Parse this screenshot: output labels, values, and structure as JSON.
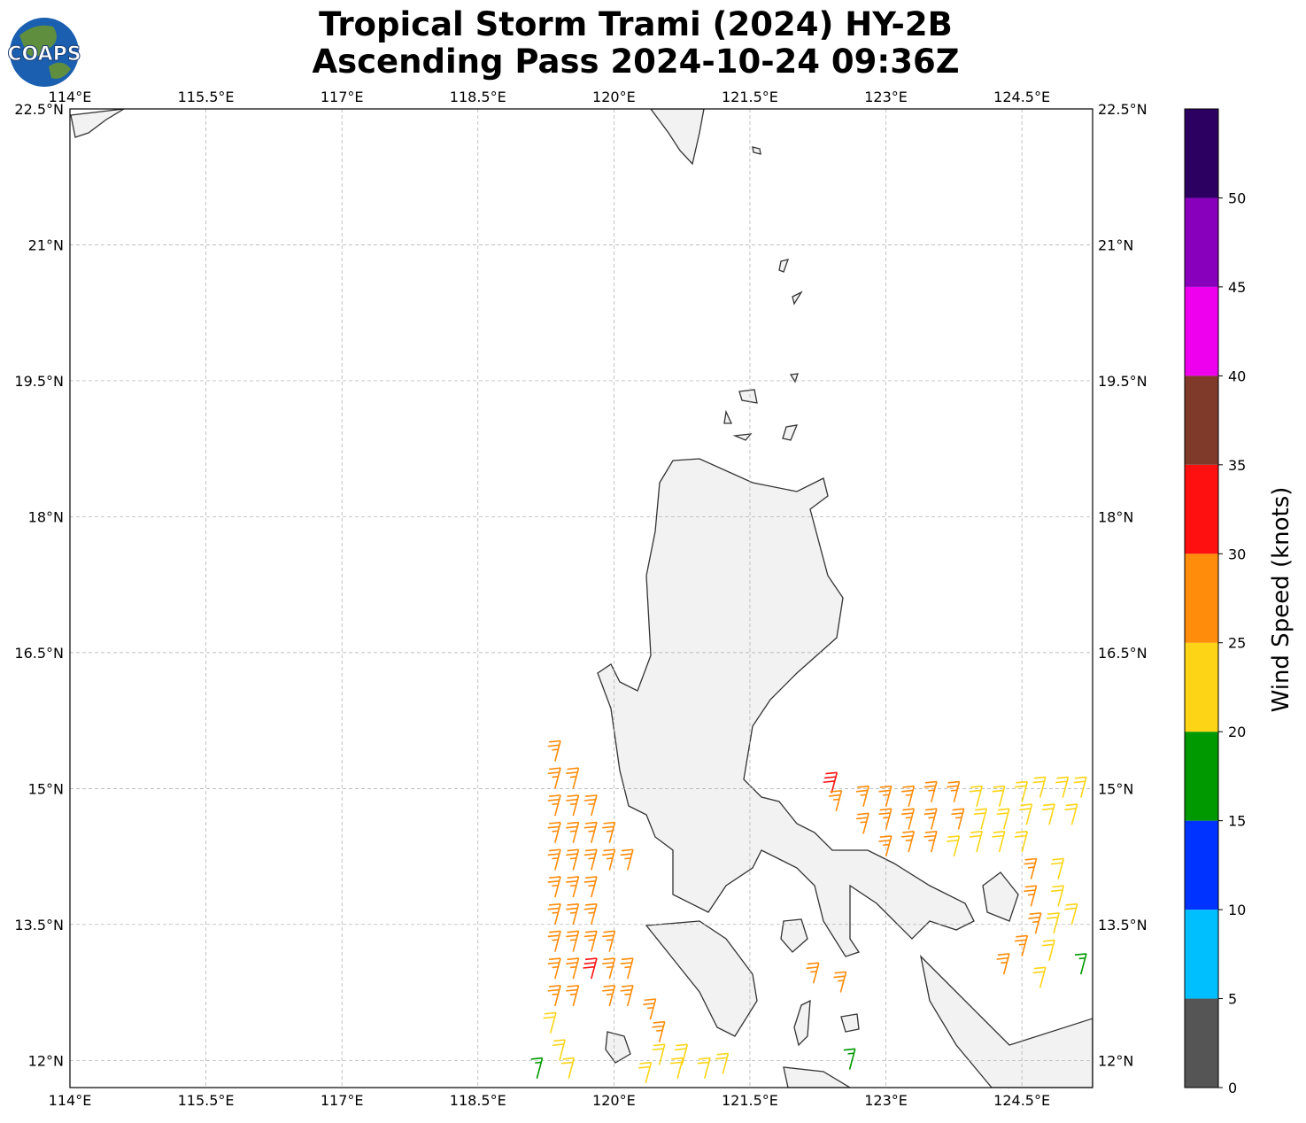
{
  "logo": "COAPS",
  "chart_data": {
    "type": "wind-barb-map",
    "title": "Tropical Storm Trami (2024) HY-2B",
    "subtitle": "Ascending Pass 2024-10-24 09:36Z",
    "xlim": [
      114,
      125.28
    ],
    "ylim": [
      11.7,
      22.5
    ],
    "xticks": [
      {
        "value": 114,
        "label": "114°E"
      },
      {
        "value": 115.5,
        "label": "115.5°E"
      },
      {
        "value": 117,
        "label": "117°E"
      },
      {
        "value": 118.5,
        "label": "118.5°E"
      },
      {
        "value": 120,
        "label": "120°E"
      },
      {
        "value": 121.5,
        "label": "121.5°E"
      },
      {
        "value": 123,
        "label": "123°E"
      },
      {
        "value": 124.5,
        "label": "124.5°E"
      }
    ],
    "yticks": [
      {
        "value": 12,
        "label": "12°N"
      },
      {
        "value": 13.5,
        "label": "13.5°N"
      },
      {
        "value": 15,
        "label": "15°N"
      },
      {
        "value": 16.5,
        "label": "16.5°N"
      },
      {
        "value": 18,
        "label": "18°N"
      },
      {
        "value": 19.5,
        "label": "19.5°N"
      },
      {
        "value": 21,
        "label": "21°N"
      },
      {
        "value": 22.5,
        "label": "22.5°N"
      }
    ],
    "grid": true,
    "colorbar": {
      "label": "Wind Speed (knots)",
      "lim": [
        0,
        55
      ],
      "bounds": [
        0,
        5,
        10,
        15,
        20,
        25,
        30,
        35,
        40,
        45,
        50,
        55
      ],
      "colors": [
        "#555555",
        "#00bfff",
        "#0033ff",
        "#009900",
        "#fdd516",
        "#ff8c0a",
        "#ff1010",
        "#7f3a2a",
        "#ee00ee",
        "#8800bb",
        "#2c0060"
      ],
      "ticks": [
        0,
        5,
        10,
        15,
        20,
        25,
        30,
        35,
        40,
        45,
        50
      ]
    },
    "barbs": [
      {
        "lon": 119.35,
        "lat": 15.3,
        "speed": 27
      },
      {
        "lon": 119.35,
        "lat": 15.0,
        "speed": 27
      },
      {
        "lon": 119.35,
        "lat": 14.7,
        "speed": 27
      },
      {
        "lon": 119.35,
        "lat": 14.4,
        "speed": 27
      },
      {
        "lon": 119.35,
        "lat": 14.1,
        "speed": 27
      },
      {
        "lon": 119.35,
        "lat": 13.8,
        "speed": 27
      },
      {
        "lon": 119.35,
        "lat": 13.5,
        "speed": 27
      },
      {
        "lon": 119.35,
        "lat": 13.2,
        "speed": 27
      },
      {
        "lon": 119.35,
        "lat": 12.9,
        "speed": 27
      },
      {
        "lon": 119.35,
        "lat": 12.6,
        "speed": 27
      },
      {
        "lon": 119.55,
        "lat": 15.0,
        "speed": 27
      },
      {
        "lon": 119.55,
        "lat": 14.7,
        "speed": 27
      },
      {
        "lon": 119.55,
        "lat": 14.4,
        "speed": 27
      },
      {
        "lon": 119.55,
        "lat": 14.1,
        "speed": 27
      },
      {
        "lon": 119.55,
        "lat": 13.8,
        "speed": 27
      },
      {
        "lon": 119.55,
        "lat": 13.5,
        "speed": 27
      },
      {
        "lon": 119.55,
        "lat": 13.2,
        "speed": 27
      },
      {
        "lon": 119.55,
        "lat": 12.9,
        "speed": 27
      },
      {
        "lon": 119.55,
        "lat": 12.6,
        "speed": 27
      },
      {
        "lon": 119.75,
        "lat": 14.7,
        "speed": 27
      },
      {
        "lon": 119.75,
        "lat": 14.4,
        "speed": 27
      },
      {
        "lon": 119.75,
        "lat": 14.1,
        "speed": 27
      },
      {
        "lon": 119.75,
        "lat": 13.8,
        "speed": 27
      },
      {
        "lon": 119.75,
        "lat": 13.5,
        "speed": 27
      },
      {
        "lon": 119.75,
        "lat": 13.2,
        "speed": 27
      },
      {
        "lon": 119.75,
        "lat": 12.9,
        "speed": 32
      },
      {
        "lon": 119.95,
        "lat": 14.4,
        "speed": 27
      },
      {
        "lon": 119.95,
        "lat": 14.1,
        "speed": 27
      },
      {
        "lon": 119.95,
        "lat": 13.2,
        "speed": 27
      },
      {
        "lon": 119.95,
        "lat": 12.9,
        "speed": 27
      },
      {
        "lon": 119.95,
        "lat": 12.6,
        "speed": 27
      },
      {
        "lon": 120.15,
        "lat": 14.1,
        "speed": 27
      },
      {
        "lon": 120.15,
        "lat": 12.9,
        "speed": 27
      },
      {
        "lon": 120.15,
        "lat": 12.6,
        "speed": 27
      },
      {
        "lon": 119.3,
        "lat": 12.3,
        "speed": 22
      },
      {
        "lon": 119.4,
        "lat": 12.0,
        "speed": 22
      },
      {
        "lon": 119.5,
        "lat": 11.8,
        "speed": 22
      },
      {
        "lon": 119.15,
        "lat": 11.8,
        "speed": 17
      },
      {
        "lon": 120.4,
        "lat": 12.45,
        "speed": 27
      },
      {
        "lon": 120.5,
        "lat": 12.2,
        "speed": 27
      },
      {
        "lon": 120.5,
        "lat": 11.95,
        "speed": 22
      },
      {
        "lon": 120.75,
        "lat": 11.95,
        "speed": 22
      },
      {
        "lon": 120.35,
        "lat": 11.75,
        "speed": 22
      },
      {
        "lon": 120.7,
        "lat": 11.8,
        "speed": 22
      },
      {
        "lon": 121.0,
        "lat": 11.8,
        "speed": 22
      },
      {
        "lon": 121.2,
        "lat": 11.85,
        "speed": 22
      },
      {
        "lon": 122.2,
        "lat": 12.85,
        "speed": 27
      },
      {
        "lon": 122.5,
        "lat": 12.75,
        "speed": 27
      },
      {
        "lon": 122.6,
        "lat": 11.9,
        "speed": 17
      },
      {
        "lon": 122.4,
        "lat": 14.95,
        "speed": 32
      },
      {
        "lon": 122.45,
        "lat": 14.75,
        "speed": 27
      },
      {
        "lon": 122.75,
        "lat": 14.8,
        "speed": 27
      },
      {
        "lon": 123.0,
        "lat": 14.8,
        "speed": 27
      },
      {
        "lon": 123.25,
        "lat": 14.8,
        "speed": 27
      },
      {
        "lon": 123.5,
        "lat": 14.85,
        "speed": 27
      },
      {
        "lon": 123.75,
        "lat": 14.85,
        "speed": 27
      },
      {
        "lon": 122.75,
        "lat": 14.5,
        "speed": 27
      },
      {
        "lon": 123.0,
        "lat": 14.55,
        "speed": 27
      },
      {
        "lon": 123.25,
        "lat": 14.55,
        "speed": 27
      },
      {
        "lon": 123.5,
        "lat": 14.55,
        "speed": 27
      },
      {
        "lon": 123.8,
        "lat": 14.55,
        "speed": 27
      },
      {
        "lon": 123.0,
        "lat": 14.25,
        "speed": 27
      },
      {
        "lon": 123.25,
        "lat": 14.3,
        "speed": 27
      },
      {
        "lon": 123.5,
        "lat": 14.3,
        "speed": 27
      },
      {
        "lon": 124.0,
        "lat": 14.8,
        "speed": 22
      },
      {
        "lon": 124.25,
        "lat": 14.8,
        "speed": 22
      },
      {
        "lon": 124.5,
        "lat": 14.85,
        "speed": 22
      },
      {
        "lon": 124.7,
        "lat": 14.9,
        "speed": 22
      },
      {
        "lon": 124.95,
        "lat": 14.9,
        "speed": 22
      },
      {
        "lon": 125.15,
        "lat": 14.9,
        "speed": 22
      },
      {
        "lon": 124.05,
        "lat": 14.55,
        "speed": 22
      },
      {
        "lon": 124.3,
        "lat": 14.55,
        "speed": 22
      },
      {
        "lon": 124.55,
        "lat": 14.6,
        "speed": 22
      },
      {
        "lon": 124.8,
        "lat": 14.6,
        "speed": 22
      },
      {
        "lon": 125.05,
        "lat": 14.6,
        "speed": 22
      },
      {
        "lon": 123.75,
        "lat": 14.25,
        "speed": 22
      },
      {
        "lon": 124.0,
        "lat": 14.3,
        "speed": 22
      },
      {
        "lon": 124.25,
        "lat": 14.3,
        "speed": 22
      },
      {
        "lon": 124.5,
        "lat": 14.3,
        "speed": 22
      },
      {
        "lon": 124.6,
        "lat": 14.0,
        "speed": 27
      },
      {
        "lon": 124.6,
        "lat": 13.7,
        "speed": 27
      },
      {
        "lon": 124.65,
        "lat": 13.4,
        "speed": 27
      },
      {
        "lon": 124.5,
        "lat": 13.15,
        "speed": 27
      },
      {
        "lon": 124.3,
        "lat": 12.95,
        "speed": 27
      },
      {
        "lon": 124.9,
        "lat": 14.0,
        "speed": 22
      },
      {
        "lon": 124.9,
        "lat": 13.7,
        "speed": 22
      },
      {
        "lon": 124.85,
        "lat": 13.4,
        "speed": 22
      },
      {
        "lon": 124.8,
        "lat": 13.1,
        "speed": 22
      },
      {
        "lon": 124.7,
        "lat": 12.8,
        "speed": 22
      },
      {
        "lon": 125.05,
        "lat": 13.5,
        "speed": 22
      },
      {
        "lon": 125.15,
        "lat": 12.95,
        "speed": 17
      }
    ]
  }
}
